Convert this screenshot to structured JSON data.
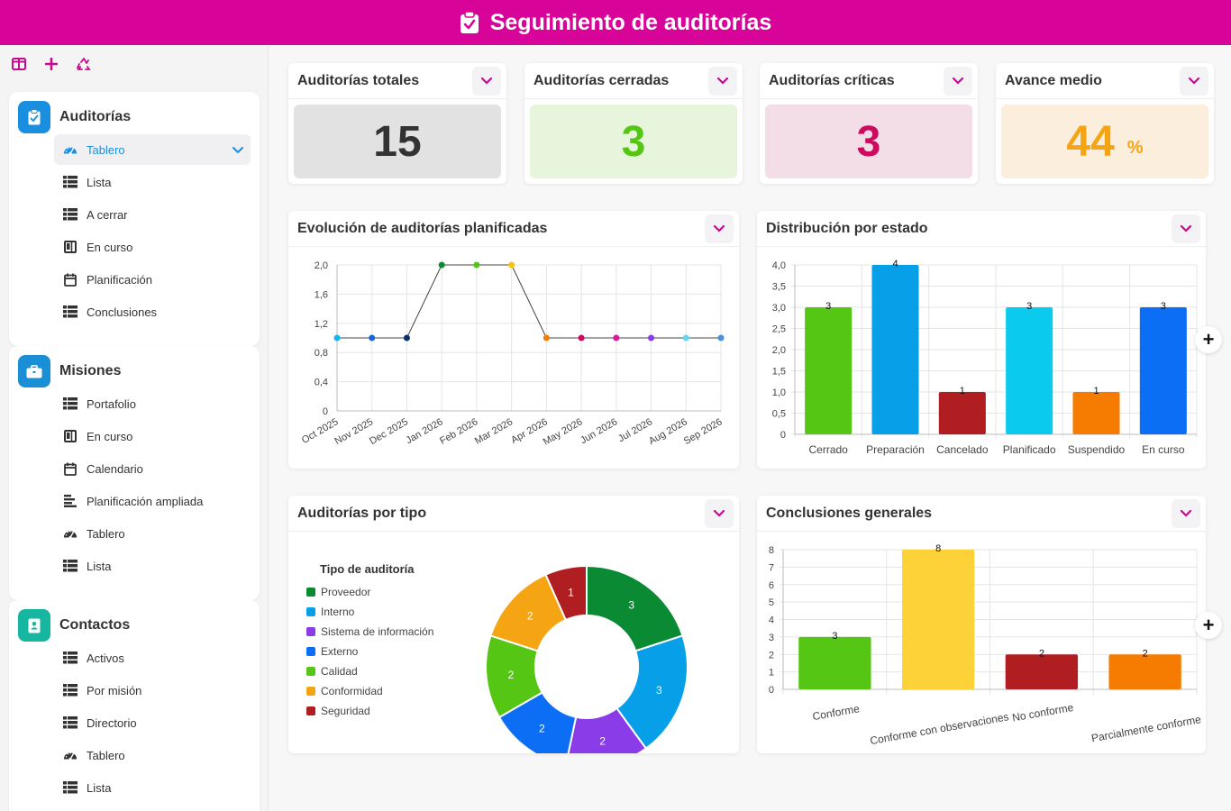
{
  "app": {
    "title": "Seguimiento de auditorías"
  },
  "colors": {
    "brand": "#d8049a",
    "active": "#1a8fe0"
  },
  "sidebar": {
    "toolbar": [
      {
        "icon": "columns-icon"
      },
      {
        "icon": "plus-icon"
      },
      {
        "icon": "recycle-icon"
      }
    ],
    "groups": [
      {
        "title": "Auditorías",
        "icon": "clipboard-check-icon",
        "color": "#1a8fe0",
        "items": [
          {
            "label": "Tablero",
            "icon": "gauge-icon",
            "active": true
          },
          {
            "label": "Lista",
            "icon": "table-icon"
          },
          {
            "label": "A cerrar",
            "icon": "table-icon"
          },
          {
            "label": "En curso",
            "icon": "kanban-icon"
          },
          {
            "label": "Planificación",
            "icon": "calendar-icon"
          },
          {
            "label": "Conclusiones",
            "icon": "table-icon"
          }
        ]
      },
      {
        "title": "Misiones",
        "icon": "briefcase-icon",
        "color": "#1a8fd6",
        "items": [
          {
            "label": "Portafolio",
            "icon": "table-icon"
          },
          {
            "label": "En curso",
            "icon": "kanban-icon"
          },
          {
            "label": "Calendario",
            "icon": "calendar-icon"
          },
          {
            "label": "Planificación ampliada",
            "icon": "gantt-icon"
          },
          {
            "label": "Tablero",
            "icon": "gauge-icon"
          },
          {
            "label": "Lista",
            "icon": "table-icon"
          }
        ]
      },
      {
        "title": "Contactos",
        "icon": "contact-book-icon",
        "color": "#17b6a0",
        "items": [
          {
            "label": "Activos",
            "icon": "table-icon"
          },
          {
            "label": "Por misión",
            "icon": "table-icon"
          },
          {
            "label": "Directorio",
            "icon": "table-icon"
          },
          {
            "label": "Tablero",
            "icon": "gauge-icon"
          },
          {
            "label": "Lista",
            "icon": "table-icon"
          }
        ]
      }
    ]
  },
  "kpis": [
    {
      "title": "Auditorías totales",
      "value": "15",
      "unit": "",
      "bg": "#e2e2e2",
      "fg": "#333333"
    },
    {
      "title": "Auditorías cerradas",
      "value": "3",
      "unit": "",
      "bg": "#e6f5dc",
      "fg": "#55c613"
    },
    {
      "title": "Auditorías críticas",
      "value": "3",
      "unit": "",
      "bg": "#f3dde7",
      "fg": "#cc0a5e"
    },
    {
      "title": "Avance medio",
      "value": "44",
      "unit": "%",
      "bg": "#fbeedd",
      "fg": "#f5a513"
    }
  ],
  "charts": {
    "line_title": "Evolución de auditorías planificadas",
    "status_title": "Distribución por estado",
    "type_title": "Auditorías por tipo",
    "conclusions_title": "Conclusiones generales"
  },
  "chart_data": [
    {
      "type": "line",
      "x": [
        "Oct 2025",
        "Nov 2025",
        "Dec 2025",
        "Jan 2026",
        "Feb 2026",
        "Mar 2026",
        "Apr 2026",
        "May 2026",
        "Jun 2026",
        "Jul 2026",
        "Aug 2026",
        "Sep 2026"
      ],
      "values": [
        1,
        1,
        1,
        2,
        2,
        2,
        1,
        1,
        1,
        1,
        1,
        1
      ],
      "point_colors": [
        "#14b5e8",
        "#1668d9",
        "#0b2e6e",
        "#0b8a34",
        "#55c613",
        "#f5c513",
        "#f57c00",
        "#cc0a5e",
        "#d81b9a",
        "#8a3ce8",
        "#6bd3f2",
        "#4a90e2"
      ],
      "y_ticks": [
        "0",
        "0,4",
        "0,8",
        "1,2",
        "1,6",
        "2,0"
      ],
      "ylim": [
        0,
        2
      ],
      "grid": true
    },
    {
      "type": "bar",
      "categories": [
        "Cerrado",
        "Preparación",
        "Cancelado",
        "Planificado",
        "Suspendido",
        "En curso"
      ],
      "values": [
        3,
        4,
        1,
        3,
        1,
        3
      ],
      "colors": [
        "#55c613",
        "#069fe8",
        "#b01e22",
        "#0acbee",
        "#f57c00",
        "#0b6ef5"
      ],
      "y_ticks": [
        "0",
        "0,5",
        "1,0",
        "1,5",
        "2,0",
        "2,5",
        "3,0",
        "3,5",
        "4,0"
      ],
      "ylim": [
        0,
        4
      ],
      "grid": true
    },
    {
      "type": "pie",
      "legend_title": "Tipo de auditoría",
      "legend_position": "left",
      "categories": [
        "Proveedor",
        "Interno",
        "Sistema de información",
        "Externo",
        "Calidad",
        "Conformidad",
        "Seguridad"
      ],
      "values": [
        3,
        3,
        2,
        2,
        2,
        2,
        1
      ],
      "colors": [
        "#0b8a34",
        "#069fe8",
        "#8a3ce8",
        "#0b6ef5",
        "#55c613",
        "#f5a513",
        "#b01e22"
      ]
    },
    {
      "type": "bar",
      "categories": [
        "Conforme",
        "Conforme con observaciones",
        "No conforme",
        "Parcialmente conforme"
      ],
      "values": [
        3,
        8,
        2,
        2
      ],
      "colors": [
        "#55c613",
        "#fdd138",
        "#b01e22",
        "#f57c00"
      ],
      "y_ticks": [
        "0",
        "1",
        "2",
        "3",
        "4",
        "5",
        "6",
        "7",
        "8"
      ],
      "ylim": [
        0,
        8
      ],
      "grid": true
    }
  ]
}
